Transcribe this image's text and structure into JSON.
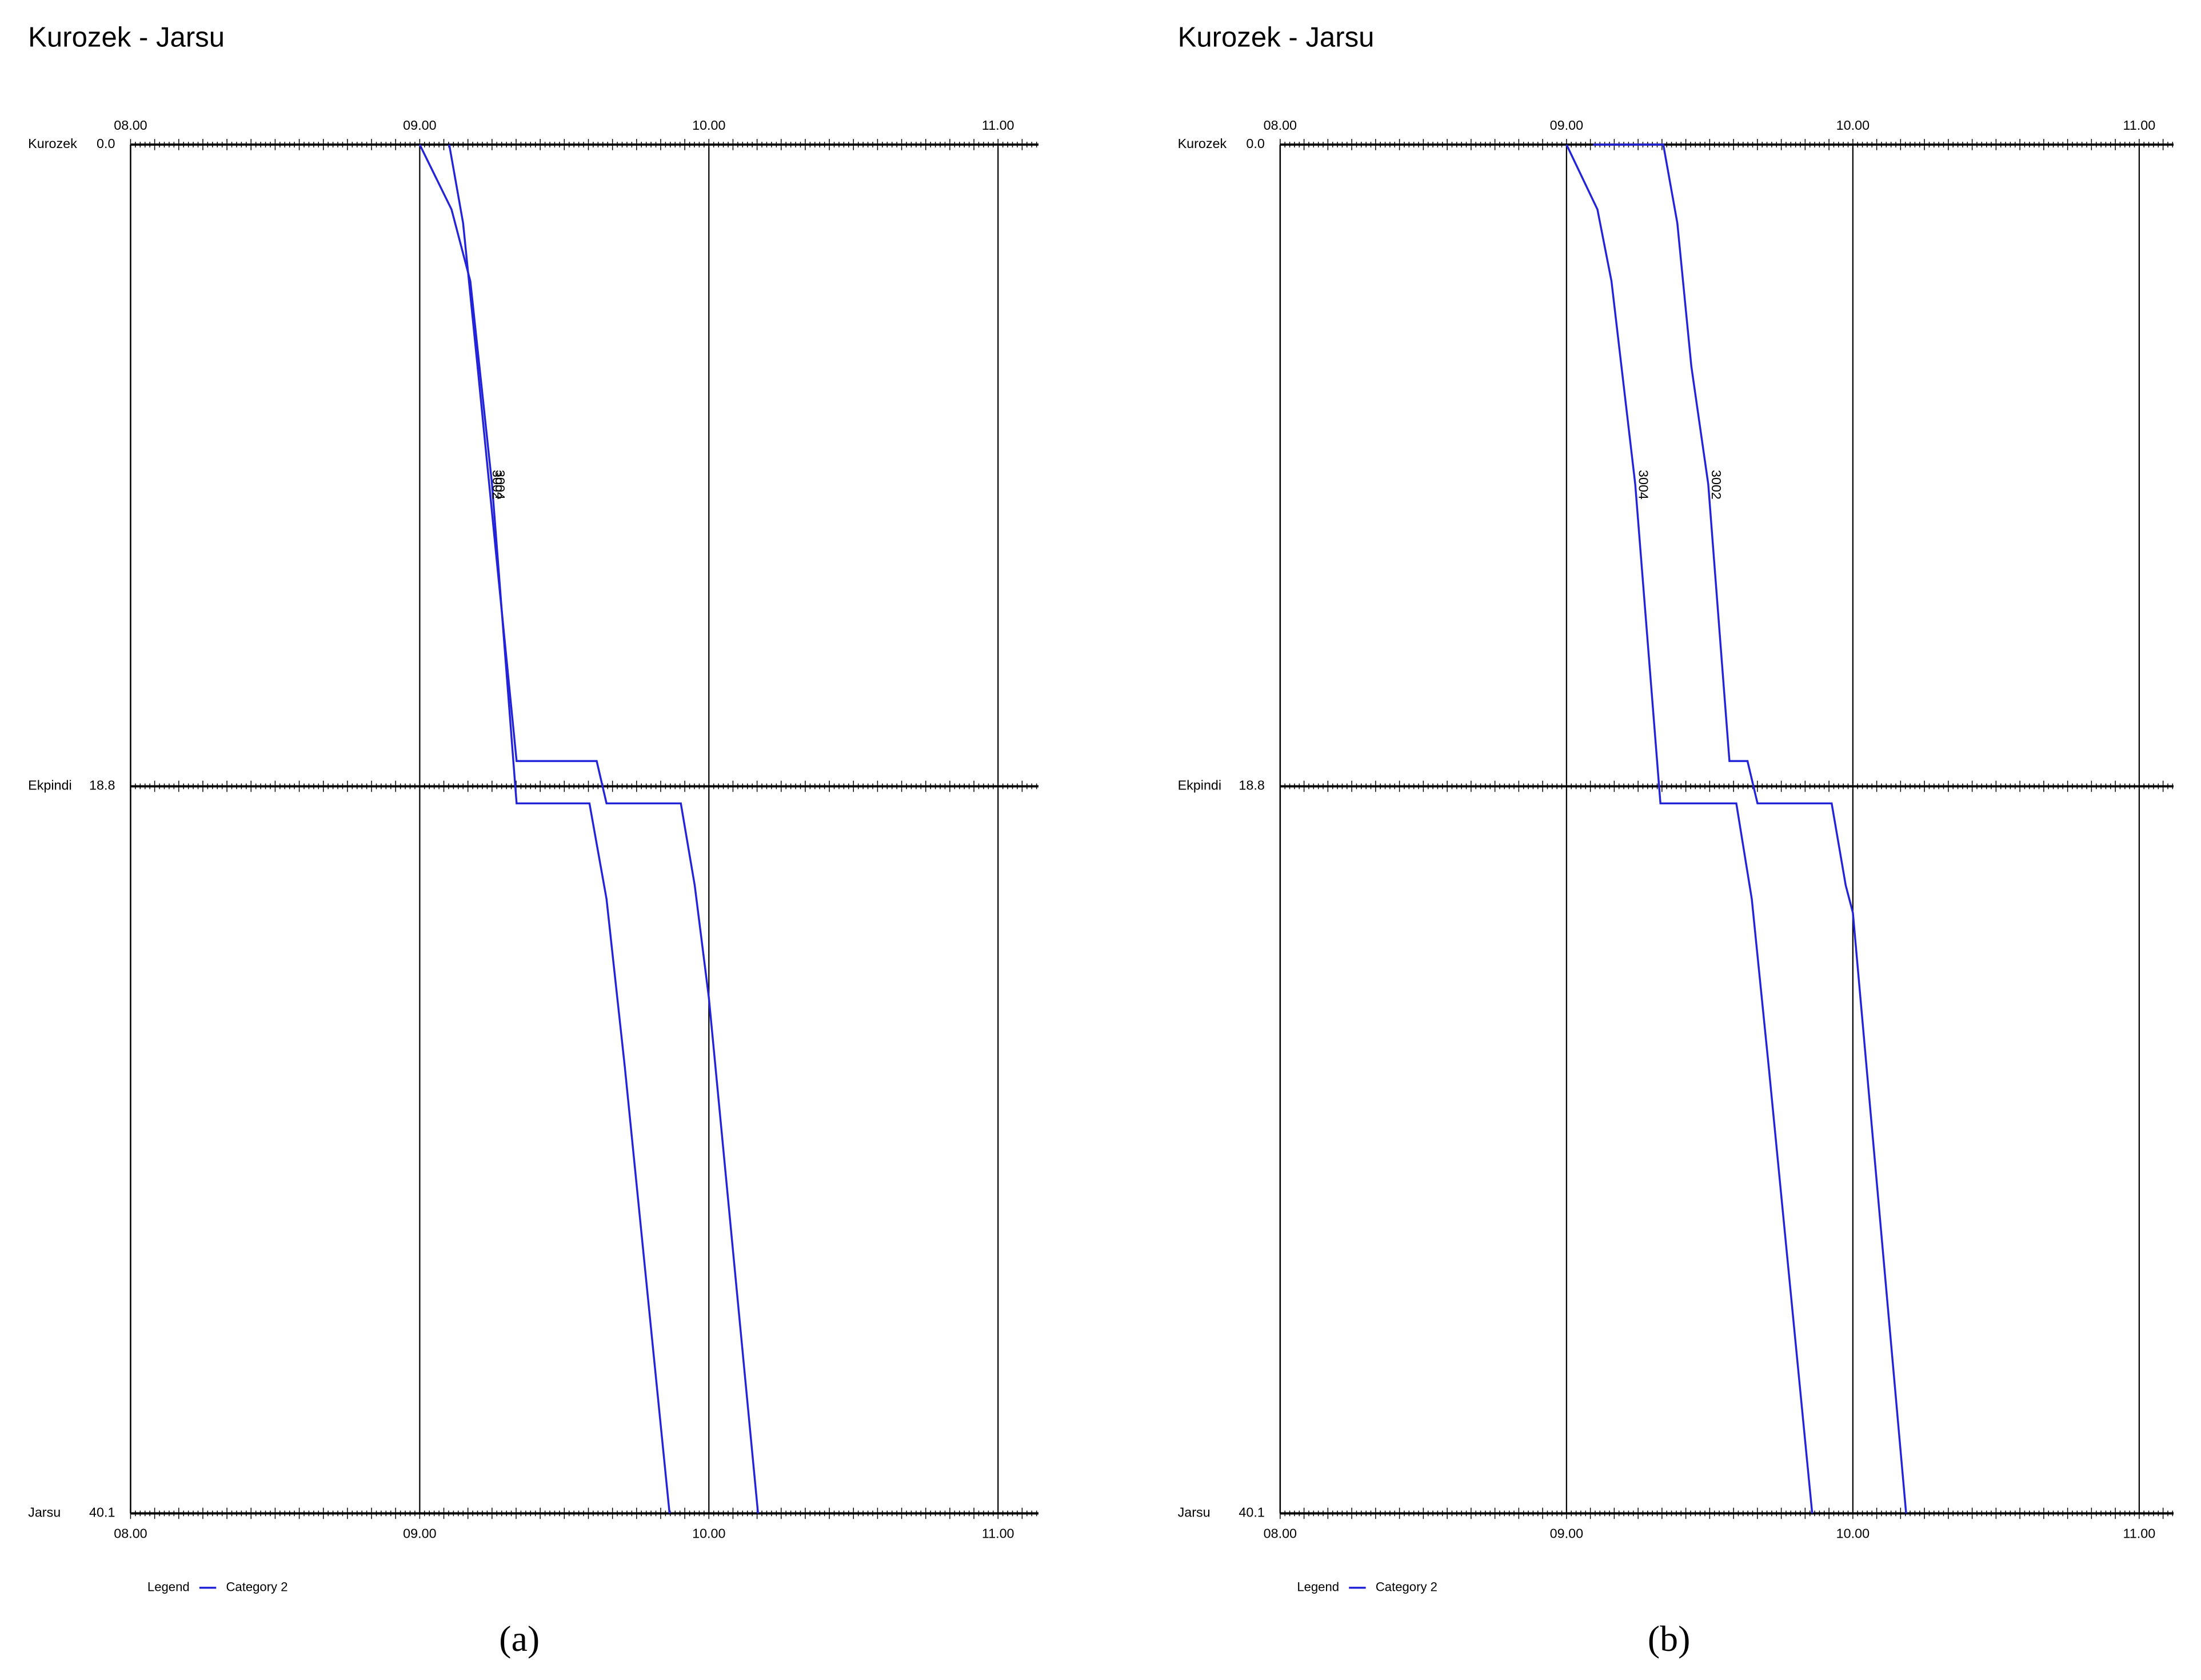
{
  "chart_data": [
    {
      "type": "line",
      "title": "Kurozek - Jarsu",
      "panel_label": "(a)",
      "y_inverted": true,
      "grid": true,
      "xlim": [
        8,
        11.14
      ],
      "xticks": [
        {
          "value": 8,
          "label": "08.00"
        },
        {
          "value": 9,
          "label": "09.00"
        },
        {
          "value": 10,
          "label": "10.00"
        },
        {
          "value": 11,
          "label": "11.00"
        }
      ],
      "ylim": [
        0,
        40.1
      ],
      "yticks": [
        {
          "value": 0,
          "label": "0.0"
        },
        {
          "value": 18.8,
          "label": "18.8"
        },
        {
          "value": 40.1,
          "label": "40.1"
        }
      ],
      "ytick_names": [
        "Kurozek",
        "Ekpindi",
        "Jarsu"
      ],
      "legend_title": "Legend",
      "legend_label": "Category 2",
      "series": [
        {
          "name": "3004",
          "color": "#2323d8",
          "x": [
            9.0,
            9.11,
            9.175,
            9.25,
            9.335,
            9.587,
            9.646,
            9.709,
            9.864
          ],
          "values": [
            0,
            1.9,
            4.0,
            9.95,
            19.3,
            19.3,
            22.1,
            27.0,
            40.1
          ]
        },
        {
          "name": "3002",
          "color": "#2323d8",
          "x": [
            9.102,
            9.15,
            9.2,
            9.335,
            9.612,
            9.646,
            9.903,
            9.951,
            10.0,
            10.17
          ],
          "values": [
            0,
            2.3,
            6.5,
            18.06,
            18.06,
            19.3,
            19.3,
            21.7,
            25.0,
            40.1
          ]
        }
      ]
    },
    {
      "type": "line",
      "title": "Kurozek - Jarsu",
      "panel_label": "(b)",
      "y_inverted": true,
      "grid": true,
      "xlim": [
        8,
        11.12
      ],
      "xticks": [
        {
          "value": 8,
          "label": "08.00"
        },
        {
          "value": 9,
          "label": "09.00"
        },
        {
          "value": 10,
          "label": "10.00"
        },
        {
          "value": 11,
          "label": "11.00"
        }
      ],
      "ylim": [
        0,
        40.1
      ],
      "yticks": [
        {
          "value": 0,
          "label": "0.0"
        },
        {
          "value": 18.8,
          "label": "18.8"
        },
        {
          "value": 40.1,
          "label": "40.1"
        }
      ],
      "ytick_names": [
        "Kurozek",
        "Ekpindi",
        "Jarsu"
      ],
      "legend_title": "Legend",
      "legend_label": "Category 2",
      "series": [
        {
          "name": "3004",
          "color": "#2323d8",
          "x": [
            9.0,
            9.108,
            9.157,
            9.24,
            9.328,
            9.593,
            9.647,
            9.706,
            9.858
          ],
          "values": [
            0,
            1.9,
            4.0,
            9.95,
            19.3,
            19.3,
            22.1,
            27.0,
            40.1
          ]
        },
        {
          "name": "3002",
          "color": "#2323d8",
          "x": [
            9.093,
            9.338,
            9.387,
            9.436,
            9.495,
            9.569,
            9.632,
            9.667,
            9.926,
            9.975,
            10.0,
            10.186
          ],
          "values": [
            0,
            0,
            2.3,
            6.5,
            9.95,
            18.06,
            18.06,
            19.3,
            19.3,
            21.7,
            22.5,
            40.1
          ]
        }
      ]
    }
  ]
}
